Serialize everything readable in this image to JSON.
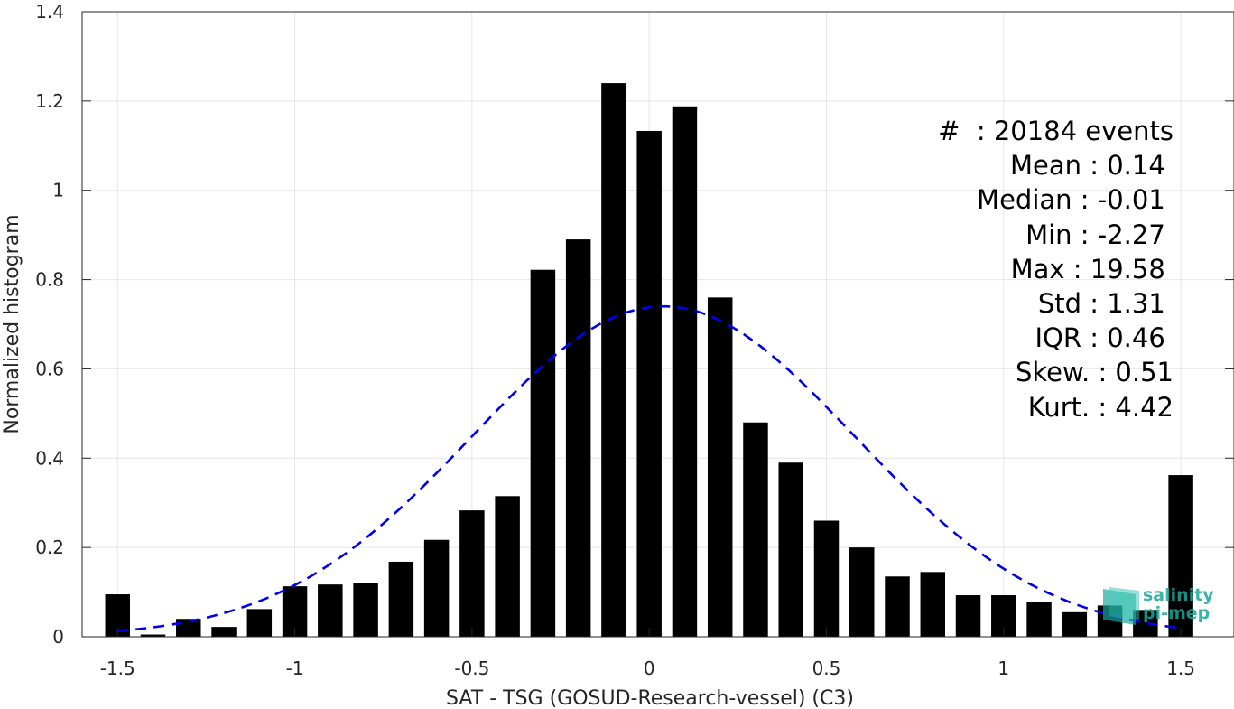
{
  "chart_data": {
    "type": "bar",
    "xlabel": "SAT - TSG (GOSUD-Research-vessel) (C3)",
    "ylabel": "Normalized histogram",
    "xlim": [
      -1.6,
      1.65
    ],
    "ylim": [
      0,
      1.4
    ],
    "x_ticks": [
      -1.5,
      -1,
      -0.5,
      0,
      0.5,
      1,
      1.5
    ],
    "x_tick_labels": [
      "-1.5",
      "-1",
      "-0.5",
      "0",
      "0.5",
      "1",
      "1.5"
    ],
    "y_ticks": [
      0,
      0.2,
      0.4,
      0.6,
      0.8,
      1,
      1.2,
      1.4
    ],
    "y_tick_labels": [
      "0",
      "0.2",
      "0.4",
      "0.6",
      "0.8",
      "1",
      "1.2",
      "1.4"
    ],
    "grid": true,
    "bar_width": 0.07,
    "bar_color": "#000000",
    "x": [
      -1.5,
      -1.4,
      -1.3,
      -1.2,
      -1.1,
      -1.0,
      -0.9,
      -0.8,
      -0.7,
      -0.6,
      -0.5,
      -0.4,
      -0.3,
      -0.2,
      -0.1,
      0.0,
      0.1,
      0.2,
      0.3,
      0.4,
      0.5,
      0.6,
      0.7,
      0.8,
      0.9,
      1.0,
      1.1,
      1.2,
      1.3,
      1.4,
      1.5
    ],
    "values": [
      0.095,
      0.005,
      0.04,
      0.022,
      0.062,
      0.113,
      0.117,
      0.12,
      0.168,
      0.217,
      0.283,
      0.315,
      0.822,
      0.89,
      1.24,
      1.133,
      1.188,
      0.76,
      0.48,
      0.39,
      0.26,
      0.2,
      0.135,
      0.145,
      0.093,
      0.093,
      0.078,
      0.055,
      0.07,
      0.06,
      0.362
    ],
    "fit_curve": {
      "style": "dashed",
      "color": "#0000ee",
      "mean": 0.04,
      "std": 0.54,
      "peak": 0.74,
      "x_range": [
        -1.5,
        1.5
      ]
    },
    "annotations": [
      "#  : 20184 events",
      "Mean : 0.14 ",
      "Median : -0.01 ",
      "Min : -2.27 ",
      "Max : 19.58 ",
      "Std : 1.31 ",
      "IQR : 0.46 ",
      "Skew. : 0.51",
      "Kurt. : 4.42"
    ]
  },
  "logo": {
    "line1": "salinity",
    "line2": "pi-mep",
    "color": "#19a89a"
  }
}
